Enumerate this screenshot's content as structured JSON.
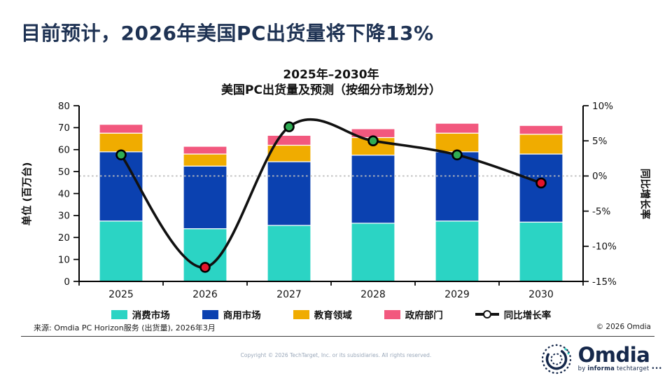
{
  "page": {
    "title": "目前预计，2026年美国PC出货量将下降13%",
    "source_note": "来源: Omdia PC Horizon服务 (出货量), 2026年3月",
    "copyright_right": "© 2026 Omdia",
    "footer_copyright": "Copyright © 2026 TechTarget, Inc. or its subsidiaries. All rights reserved.",
    "logo": {
      "name": "Omdia",
      "tagline_by": "by ",
      "tagline_informa": "informa",
      "tagline_rest": " techtarget",
      "tagline_dots": " •••"
    }
  },
  "chart_data": {
    "type": "bar",
    "subtype": "stacked-bar-with-line",
    "title_line1": "2025年–2030年",
    "title_line2": "美国PC出货量及预测（按细分市场划分）",
    "categories": [
      "2025",
      "2026",
      "2027",
      "2028",
      "2029",
      "2030"
    ],
    "series": [
      {
        "name": "消费市场",
        "color": "#2bd4c4",
        "values": [
          27.5,
          24.0,
          25.5,
          26.5,
          27.5,
          27.0
        ]
      },
      {
        "name": "商用市场",
        "color": "#0b41b0",
        "values": [
          31.5,
          28.5,
          29.0,
          31.0,
          31.5,
          31.0
        ]
      },
      {
        "name": "教育领域",
        "color": "#f0ac00",
        "values": [
          8.5,
          5.5,
          7.5,
          8.0,
          8.5,
          9.0
        ]
      },
      {
        "name": "政府部门",
        "color": "#f2587e",
        "values": [
          4.0,
          3.5,
          4.5,
          4.0,
          4.5,
          4.0
        ]
      }
    ],
    "line_series": {
      "name": "同比增长率",
      "values_pct": [
        3,
        -13,
        7,
        5,
        3,
        -1
      ],
      "color": "#111111",
      "marker_positive_color": "#2fab53",
      "marker_negative_color": "#e2142b"
    },
    "ylabel_left": "单位 (百万台)",
    "ylabel_right": "同比增长率",
    "ylim_left": [
      0,
      80
    ],
    "ytick_step_left": 10,
    "ylim_right_pct": [
      -15,
      10
    ],
    "ytick_step_right_pct": 5,
    "zero_reference_line_pct": 0,
    "grid": "zero-line-only",
    "legend_position": "bottom"
  }
}
